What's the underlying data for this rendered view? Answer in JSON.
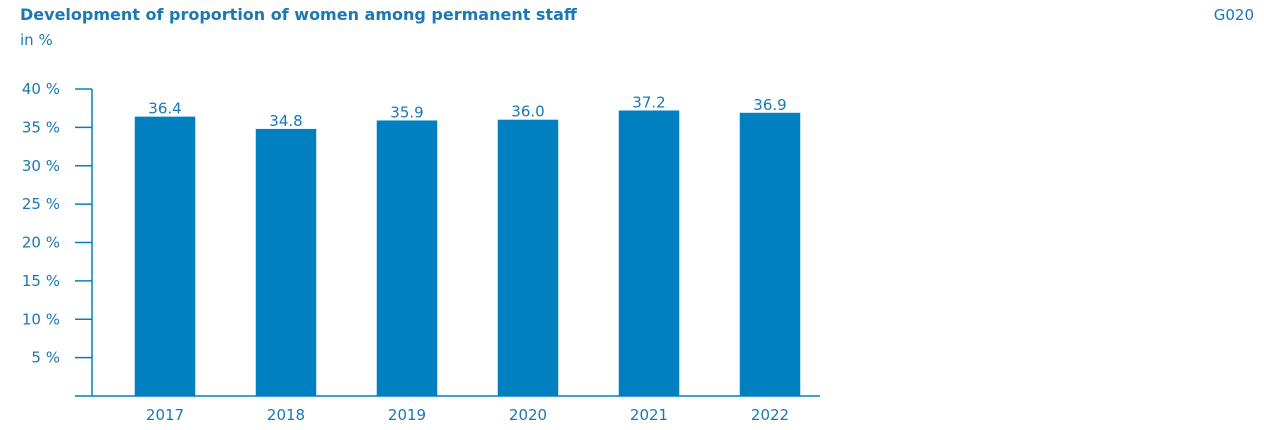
{
  "chart_data": {
    "type": "bar",
    "title": "Development of proportion of women among permanent staff",
    "subtitle": "in %",
    "code": "G020",
    "categories": [
      "2017",
      "2018",
      "2019",
      "2020",
      "2021",
      "2022"
    ],
    "values": [
      36.4,
      34.8,
      35.9,
      36.0,
      37.2,
      36.9
    ],
    "value_labels": [
      "36.4",
      "34.8",
      "35.9",
      "36.0",
      "37.2",
      "36.9"
    ],
    "color": "#0080c0",
    "ylim": [
      0,
      40
    ],
    "yticks": [
      {
        "value": 5,
        "label": "5 %"
      },
      {
        "value": 10,
        "label": "10 %"
      },
      {
        "value": 15,
        "label": "15 %"
      },
      {
        "value": 20,
        "label": "20 %"
      },
      {
        "value": 25,
        "label": "25 %"
      },
      {
        "value": 30,
        "label": "30 %"
      },
      {
        "value": 35,
        "label": "35 %"
      },
      {
        "value": 40,
        "label": "40 %"
      }
    ],
    "grid": false
  }
}
